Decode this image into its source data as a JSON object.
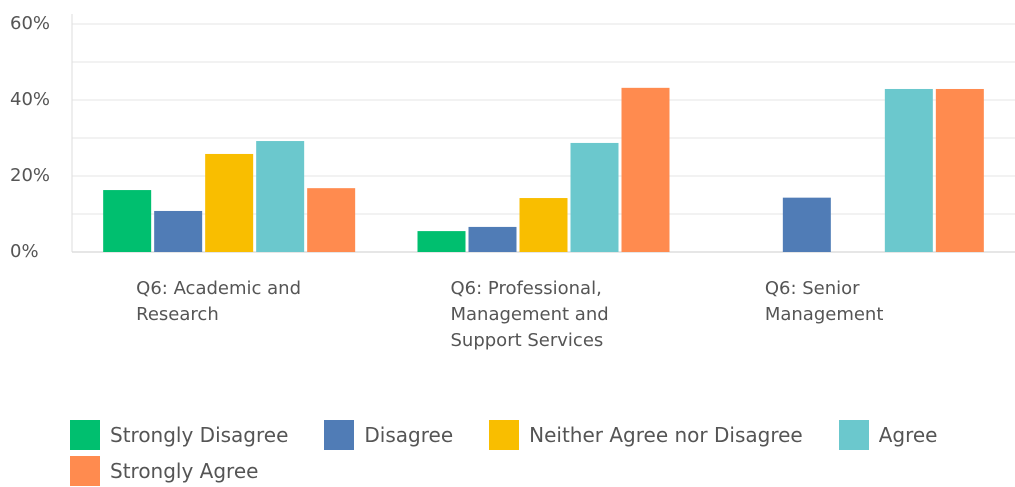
{
  "chart_data": {
    "type": "bar",
    "categories": [
      "Q6: Academic and Research",
      "Q6: Professional, Management and Support Services",
      "Q6: Senior Management"
    ],
    "series": [
      {
        "name": "Strongly Disagree",
        "color": "#00bf6f",
        "values": [
          16.3,
          5.5,
          0
        ]
      },
      {
        "name": "Disagree",
        "color": "#507cb6",
        "values": [
          10.8,
          6.6,
          14.3
        ]
      },
      {
        "name": "Neither Agree nor Disagree",
        "color": "#f9be00",
        "values": [
          25.8,
          14.2,
          0
        ]
      },
      {
        "name": "Agree",
        "color": "#6bc8cd",
        "values": [
          29.2,
          28.7,
          42.9
        ]
      },
      {
        "name": "Strongly Agree",
        "color": "#ff8b4f",
        "values": [
          16.8,
          43.2,
          42.9
        ]
      }
    ],
    "ylim": [
      0,
      60
    ],
    "yticks": [
      {
        "value": 0,
        "label": "0%"
      },
      {
        "value": 20,
        "label": "20%"
      },
      {
        "value": 40,
        "label": "40%"
      },
      {
        "value": 60,
        "label": "60%"
      }
    ],
    "minor_gridlines": [
      10,
      30,
      50
    ],
    "grid": true
  }
}
